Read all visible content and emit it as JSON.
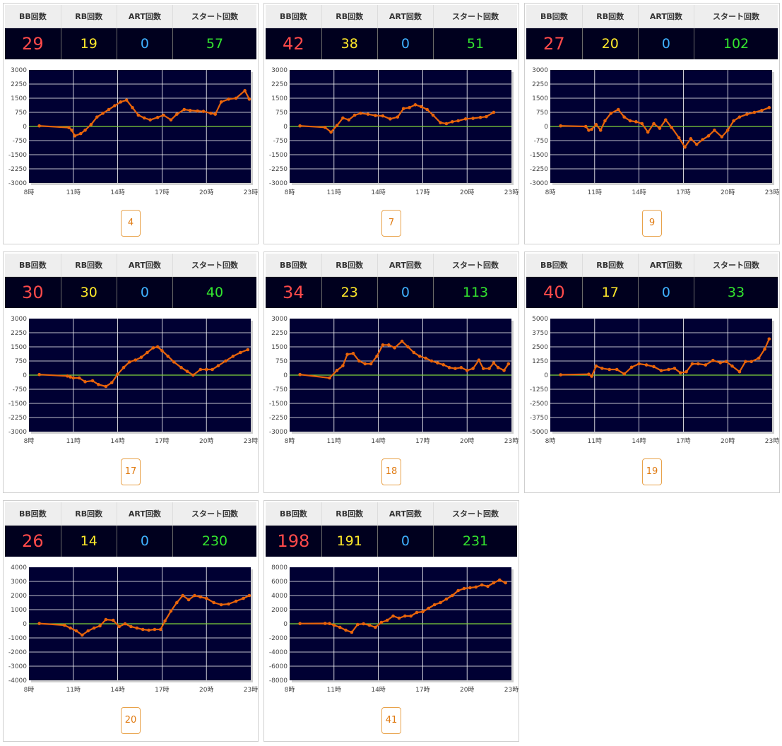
{
  "header_labels": {
    "bb": "BB回数",
    "rb": "RB回数",
    "art": "ART回数",
    "start": "スタート回数"
  },
  "x_tick_labels": [
    "8時",
    "11時",
    "14時",
    "17時",
    "20時",
    "23時"
  ],
  "colors": {
    "stats_bg": "#00001e",
    "plot_bg": "#000033",
    "line": "#e8640a",
    "zero_line": "#7fd33a",
    "bb": "#ff4a4a",
    "rb": "#ffe92a",
    "art": "#3fb0ff",
    "start": "#33e52f",
    "number_box": "#e07a10"
  },
  "cards": [
    {
      "number": "4",
      "bb": "29",
      "rb": "19",
      "art": "0",
      "start": "57"
    },
    {
      "number": "7",
      "bb": "42",
      "rb": "38",
      "art": "0",
      "start": "51"
    },
    {
      "number": "9",
      "bb": "27",
      "rb": "20",
      "art": "0",
      "start": "102"
    },
    {
      "number": "17",
      "bb": "30",
      "rb": "30",
      "art": "0",
      "start": "40"
    },
    {
      "number": "18",
      "bb": "34",
      "rb": "23",
      "art": "0",
      "start": "113"
    },
    {
      "number": "19",
      "bb": "40",
      "rb": "17",
      "art": "0",
      "start": "33"
    },
    {
      "number": "20",
      "bb": "26",
      "rb": "14",
      "art": "0",
      "start": "230"
    },
    {
      "number": "41",
      "bb": "198",
      "rb": "191",
      "art": "0",
      "start": "231"
    }
  ],
  "chart_data": [
    {
      "type": "line",
      "ylim": [
        -3000,
        3000
      ],
      "y_ticks": [
        3000,
        2250,
        1500,
        750,
        0,
        -750,
        -1500,
        -2250,
        -3000
      ],
      "xlim": [
        8,
        23
      ],
      "x": [
        8.7,
        10.7,
        10.9,
        11.1,
        11.5,
        11.8,
        12.2,
        12.6,
        13.0,
        13.4,
        13.8,
        14.2,
        14.6,
        15.0,
        15.4,
        15.8,
        16.2,
        16.7,
        17.1,
        17.6,
        18.0,
        18.5,
        18.9,
        19.4,
        19.8,
        20.3,
        20.6,
        21.0,
        21.5,
        22.0,
        22.6,
        22.9
      ],
      "y": [
        30,
        -60,
        -200,
        -500,
        -380,
        -200,
        100,
        500,
        700,
        900,
        1100,
        1300,
        1400,
        1000,
        600,
        450,
        350,
        480,
        600,
        350,
        650,
        900,
        850,
        820,
        800,
        700,
        650,
        1300,
        1450,
        1500,
        1900,
        1450
      ]
    },
    {
      "type": "line",
      "ylim": [
        -3000,
        3000
      ],
      "y_ticks": [
        3000,
        2250,
        1500,
        750,
        0,
        -750,
        -1500,
        -2250,
        -3000
      ],
      "xlim": [
        8,
        23
      ],
      "x": [
        8.7,
        10.4,
        10.8,
        11.2,
        11.6,
        12.0,
        12.4,
        12.8,
        13.3,
        13.8,
        14.3,
        14.8,
        15.3,
        15.7,
        16.1,
        16.5,
        16.9,
        17.3,
        17.7,
        18.2,
        18.6,
        19.0,
        19.4,
        19.9,
        20.4,
        20.9,
        21.3,
        21.8
      ],
      "y": [
        30,
        -50,
        -300,
        50,
        450,
        350,
        600,
        700,
        650,
        580,
        560,
        400,
        500,
        950,
        1000,
        1150,
        1050,
        900,
        600,
        200,
        150,
        250,
        300,
        400,
        430,
        480,
        520,
        750
      ]
    },
    {
      "type": "line",
      "ylim": [
        -3000,
        3000
      ],
      "y_ticks": [
        3000,
        2250,
        1500,
        750,
        0,
        -750,
        -1500,
        -2250,
        -3000
      ],
      "xlim": [
        8,
        23
      ],
      "x": [
        8.7,
        10.4,
        10.6,
        10.8,
        11.1,
        11.4,
        11.7,
        12.1,
        12.6,
        13.0,
        13.4,
        13.8,
        14.2,
        14.6,
        15.0,
        15.4,
        15.8,
        16.2,
        16.7,
        17.1,
        17.5,
        17.9,
        18.3,
        18.7,
        19.1,
        19.6,
        20.0,
        20.4,
        20.8,
        21.3,
        21.8,
        22.3,
        22.8
      ],
      "y": [
        30,
        0,
        -200,
        -150,
        100,
        -200,
        300,
        700,
        900,
        500,
        300,
        250,
        150,
        -300,
        150,
        -100,
        350,
        -50,
        -600,
        -1100,
        -650,
        -950,
        -700,
        -500,
        -200,
        -550,
        -200,
        300,
        500,
        650,
        750,
        850,
        1000
      ]
    },
    {
      "type": "line",
      "ylim": [
        -3000,
        3000
      ],
      "y_ticks": [
        3000,
        2250,
        1500,
        750,
        0,
        -750,
        -1500,
        -2250,
        -3000
      ],
      "xlim": [
        8,
        23
      ],
      "x": [
        8.7,
        10.6,
        10.8,
        11.0,
        11.4,
        11.8,
        12.3,
        12.7,
        13.2,
        13.6,
        14.0,
        14.4,
        14.8,
        15.2,
        15.6,
        16.0,
        16.4,
        16.7,
        17.0,
        17.4,
        17.8,
        18.3,
        18.7,
        19.1,
        19.6,
        20.0,
        20.4,
        20.8,
        21.3,
        21.8,
        22.3,
        22.8
      ],
      "y": [
        30,
        -50,
        -100,
        -150,
        -150,
        -350,
        -300,
        -500,
        -600,
        -400,
        50,
        400,
        700,
        800,
        950,
        1200,
        1450,
        1500,
        1300,
        1000,
        700,
        400,
        200,
        0,
        300,
        300,
        300,
        500,
        750,
        1000,
        1200,
        1350
      ]
    },
    {
      "type": "line",
      "ylim": [
        -3000,
        3000
      ],
      "y_ticks": [
        3000,
        2250,
        1500,
        750,
        0,
        -750,
        -1500,
        -2250,
        -3000
      ],
      "xlim": [
        8,
        23
      ],
      "x": [
        8.7,
        10.7,
        11.2,
        11.6,
        11.9,
        12.3,
        12.7,
        13.1,
        13.5,
        13.9,
        14.3,
        14.7,
        15.1,
        15.6,
        16.0,
        16.4,
        16.8,
        17.2,
        17.6,
        18.0,
        18.4,
        18.8,
        19.2,
        19.6,
        20.0,
        20.4,
        20.8,
        21.1,
        21.5,
        21.8,
        22.1,
        22.5,
        22.8
      ],
      "y": [
        30,
        -150,
        250,
        500,
        1100,
        1150,
        750,
        600,
        600,
        1000,
        1600,
        1600,
        1450,
        1800,
        1500,
        1200,
        1000,
        900,
        750,
        650,
        550,
        400,
        350,
        400,
        250,
        350,
        800,
        350,
        350,
        650,
        400,
        250,
        600
      ]
    },
    {
      "type": "line",
      "ylim": [
        -5000,
        5000
      ],
      "y_ticks": [
        5000,
        3750,
        2500,
        1250,
        0,
        -1250,
        -2500,
        -3750,
        -5000
      ],
      "xlim": [
        8,
        23
      ],
      "x": [
        8.7,
        10.6,
        10.8,
        11.1,
        11.5,
        12.0,
        12.5,
        13.0,
        13.5,
        14.0,
        14.5,
        15.0,
        15.5,
        16.0,
        16.4,
        16.8,
        17.2,
        17.6,
        18.0,
        18.5,
        19.0,
        19.5,
        19.9,
        20.3,
        20.8,
        21.2,
        21.6,
        22.1,
        22.5,
        22.8
      ],
      "y": [
        30,
        80,
        -100,
        800,
        600,
        500,
        500,
        100,
        700,
        1000,
        900,
        750,
        400,
        500,
        600,
        200,
        300,
        1000,
        1000,
        900,
        1300,
        1100,
        1200,
        800,
        300,
        1200,
        1200,
        1500,
        2300,
        3200
      ]
    },
    {
      "type": "line",
      "ylim": [
        -4000,
        4000
      ],
      "y_ticks": [
        4000,
        3000,
        2000,
        1000,
        0,
        -1000,
        -2000,
        -3000,
        -4000
      ],
      "xlim": [
        8,
        23
      ],
      "x": [
        8.7,
        10.4,
        10.8,
        11.2,
        11.6,
        12.0,
        12.4,
        12.8,
        13.2,
        13.7,
        14.1,
        14.5,
        14.9,
        15.3,
        15.7,
        16.1,
        16.5,
        16.9,
        17.2,
        17.6,
        18.0,
        18.4,
        18.8,
        19.2,
        19.6,
        20.0,
        20.5,
        21.0,
        21.5,
        22.0,
        22.5,
        22.9
      ],
      "y": [
        20,
        -100,
        -300,
        -500,
        -800,
        -500,
        -300,
        -150,
        300,
        250,
        -200,
        0,
        -200,
        -300,
        -400,
        -450,
        -400,
        -400,
        200,
        900,
        1500,
        2000,
        1700,
        2000,
        1900,
        1800,
        1500,
        1350,
        1400,
        1600,
        1800,
        2000
      ]
    },
    {
      "type": "line",
      "ylim": [
        -8000,
        8000
      ],
      "y_ticks": [
        8000,
        6000,
        4000,
        2000,
        0,
        -2000,
        -4000,
        -6000,
        -8000
      ],
      "xlim": [
        8,
        23
      ],
      "x": [
        8.7,
        10.4,
        10.7,
        11.0,
        11.4,
        11.8,
        12.2,
        12.6,
        13.0,
        13.4,
        13.8,
        14.2,
        14.6,
        15.0,
        15.4,
        15.8,
        16.2,
        16.6,
        17.0,
        17.4,
        17.8,
        18.2,
        18.6,
        19.0,
        19.4,
        19.8,
        20.2,
        20.6,
        21.0,
        21.4,
        21.8,
        22.2,
        22.6
      ],
      "y": [
        30,
        50,
        30,
        -200,
        -500,
        -900,
        -1200,
        -100,
        0,
        -200,
        -500,
        200,
        500,
        1100,
        800,
        1100,
        1100,
        1600,
        1700,
        2200,
        2700,
        3000,
        3500,
        4000,
        4700,
        5000,
        5100,
        5200,
        5500,
        5300,
        5800,
        6200,
        5800
      ]
    }
  ]
}
